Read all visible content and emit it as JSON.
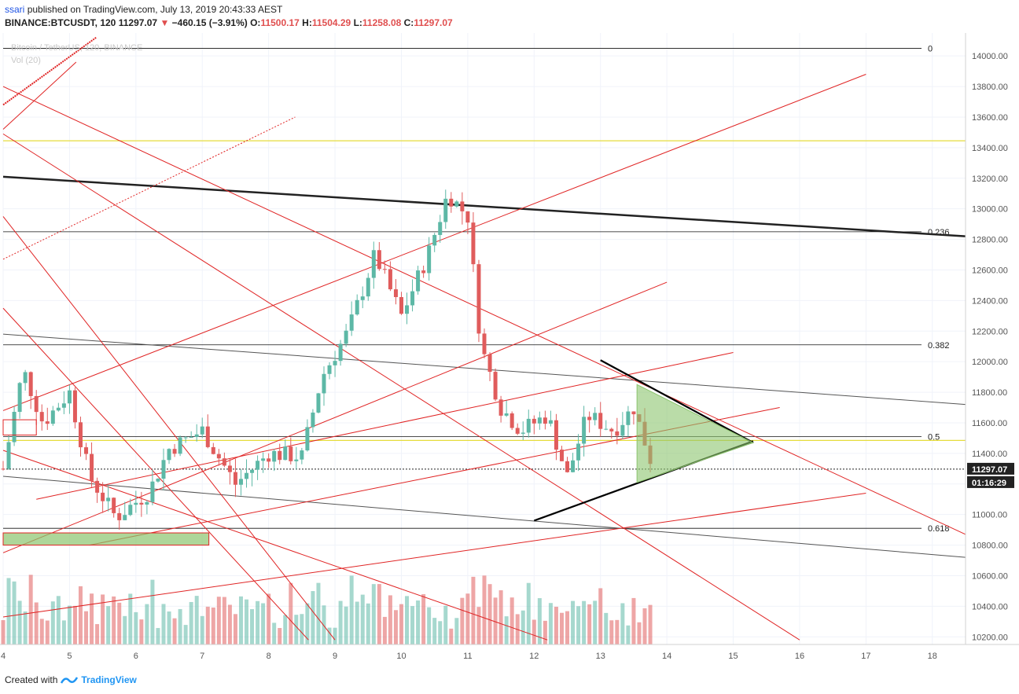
{
  "header": {
    "username": "ssari",
    "published_text": "published on TradingView.com, July 13, 2019 20:43:33 AEST",
    "symbol": "BINANCE:BTCUSDT, 120",
    "last": "11297.07",
    "change_arrow": "▼",
    "change": "−460.15 (−3.91%)",
    "open_label": "O:",
    "open": "11500.17",
    "high_label": "H:",
    "high": "11504.29",
    "low_label": "L:",
    "low": "11258.08",
    "close_label": "C:",
    "close": "11297.07",
    "faded_title": "Bitcoin / TetherUS, 120, BINANCE",
    "faded_vol": "Vol (20)"
  },
  "footer": {
    "created_with": "Created with",
    "brand": "TradingView"
  },
  "colors": {
    "up": "#5db8a6",
    "down": "#e05c5c",
    "line_red": "#e02424",
    "fib": "#111111",
    "yellow": "#e6dc3c",
    "triangle_fill": "#8cc46e"
  },
  "chart_data": {
    "type": "candlestick",
    "title": "",
    "xlabel": "",
    "ylabel": "",
    "y_ticks": [
      14000,
      13800,
      13600,
      13400,
      13200,
      13000,
      12800,
      12600,
      12400,
      12200,
      12000,
      11800,
      11600,
      11400,
      11200,
      11000,
      10800,
      10600,
      10400,
      10200
    ],
    "ylim": [
      10150,
      14150
    ],
    "x_ticks": [
      "4",
      "5",
      "6",
      "7",
      "8",
      "9",
      "10",
      "11",
      "12",
      "13",
      "14",
      "15",
      "16",
      "17",
      "18"
    ],
    "x_tick_days": [
      4,
      5,
      6,
      7,
      8,
      9,
      10,
      11,
      12,
      13,
      14,
      15,
      16,
      17,
      18
    ],
    "xlim_days": [
      4,
      18.5
    ],
    "price_label": "11297.07",
    "countdown_label": "01:16:29",
    "fib_levels": [
      {
        "label": "0",
        "price": 14050
      },
      {
        "label": "0.236",
        "price": 12850
      },
      {
        "label": "0.382",
        "price": 12110
      },
      {
        "label": "0.5",
        "price": 11510
      },
      {
        "label": "0.618",
        "price": 10910
      }
    ],
    "yellow_levels": [
      13445,
      11485
    ],
    "candles_anchor": [
      {
        "day": 4.0,
        "price": 11300
      },
      {
        "day": 4.3,
        "price": 11950
      },
      {
        "day": 4.6,
        "price": 11600
      },
      {
        "day": 5.0,
        "price": 11800
      },
      {
        "day": 5.3,
        "price": 11250
      },
      {
        "day": 5.7,
        "price": 10980
      },
      {
        "day": 6.2,
        "price": 11150
      },
      {
        "day": 6.5,
        "price": 11430
      },
      {
        "day": 7.0,
        "price": 11550
      },
      {
        "day": 7.5,
        "price": 11200
      },
      {
        "day": 8.0,
        "price": 11400
      },
      {
        "day": 8.5,
        "price": 11380
      },
      {
        "day": 8.8,
        "price": 11900
      },
      {
        "day": 9.2,
        "price": 12200
      },
      {
        "day": 9.6,
        "price": 12700
      },
      {
        "day": 10.0,
        "price": 12300
      },
      {
        "day": 10.4,
        "price": 12700
      },
      {
        "day": 10.7,
        "price": 13100
      },
      {
        "day": 11.0,
        "price": 12950
      },
      {
        "day": 11.2,
        "price": 12100
      },
      {
        "day": 11.5,
        "price": 11700
      },
      {
        "day": 11.8,
        "price": 11550
      },
      {
        "day": 12.2,
        "price": 11650
      },
      {
        "day": 12.5,
        "price": 11250
      },
      {
        "day": 12.8,
        "price": 11650
      },
      {
        "day": 13.2,
        "price": 11550
      },
      {
        "day": 13.5,
        "price": 11700
      },
      {
        "day": 13.8,
        "price": 11297
      }
    ]
  }
}
